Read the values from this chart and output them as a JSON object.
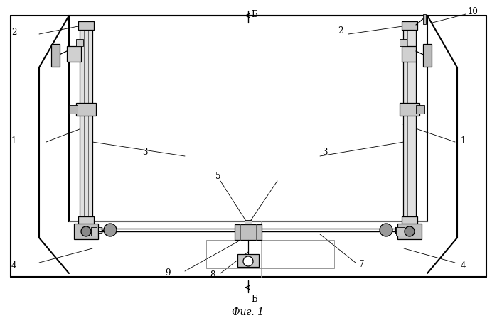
{
  "title": "Фиг. 1",
  "bg_color": "#ffffff",
  "line_color": "#000000",
  "fig_width": 6.99,
  "fig_height": 4.48,
  "dpi": 100
}
